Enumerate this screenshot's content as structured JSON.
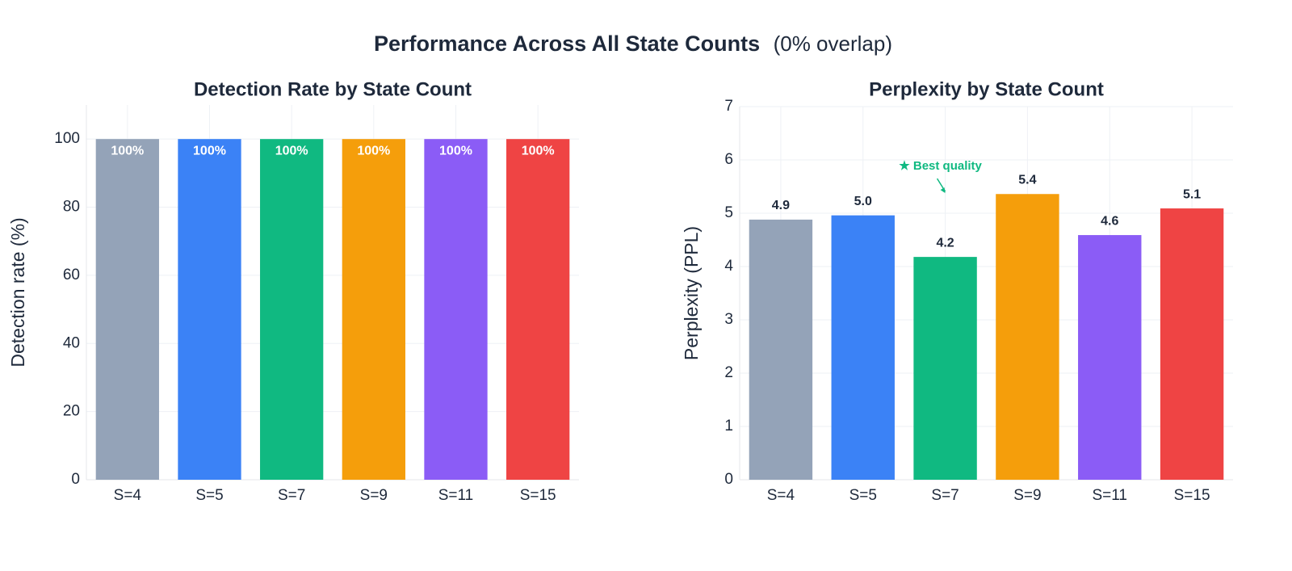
{
  "title": "Performance Across All State Counts",
  "title_note": "(0% overlap)",
  "chart_data": [
    {
      "type": "bar",
      "title": "Detection Rate by State Count",
      "ylabel": "Detection rate (%)",
      "categories": [
        "S=4",
        "S=5",
        "S=7",
        "S=9",
        "S=11",
        "S=15"
      ],
      "values": [
        100,
        100,
        100,
        100,
        100,
        100
      ],
      "value_labels": [
        "100%",
        "100%",
        "100%",
        "100%",
        "100%",
        "100%"
      ],
      "value_label_position": "inside",
      "colors": [
        "#94a3b8",
        "#3b82f6",
        "#10b981",
        "#f59e0b",
        "#8b5cf6",
        "#ef4444"
      ],
      "ylim": [
        0,
        110
      ],
      "yticks": [
        0,
        20,
        40,
        60,
        80,
        100
      ],
      "grid": true
    },
    {
      "type": "bar",
      "title": "Perplexity by State Count",
      "ylabel": "Perplexity (PPL)",
      "categories": [
        "S=4",
        "S=5",
        "S=7",
        "S=9",
        "S=11",
        "S=15"
      ],
      "values": [
        4.88,
        4.96,
        4.18,
        5.36,
        4.59,
        5.09
      ],
      "value_labels": [
        "4.9",
        "5.0",
        "4.2",
        "5.4",
        "4.6",
        "5.1"
      ],
      "value_label_position": "outside",
      "colors": [
        "#94a3b8",
        "#3b82f6",
        "#10b981",
        "#f59e0b",
        "#8b5cf6",
        "#ef4444"
      ],
      "ylim": [
        0,
        7
      ],
      "yticks": [
        0,
        1,
        2,
        3,
        4,
        5,
        6,
        7
      ],
      "grid": true,
      "annotation": "★ Best quality",
      "annotation_color": "#10b981"
    }
  ]
}
